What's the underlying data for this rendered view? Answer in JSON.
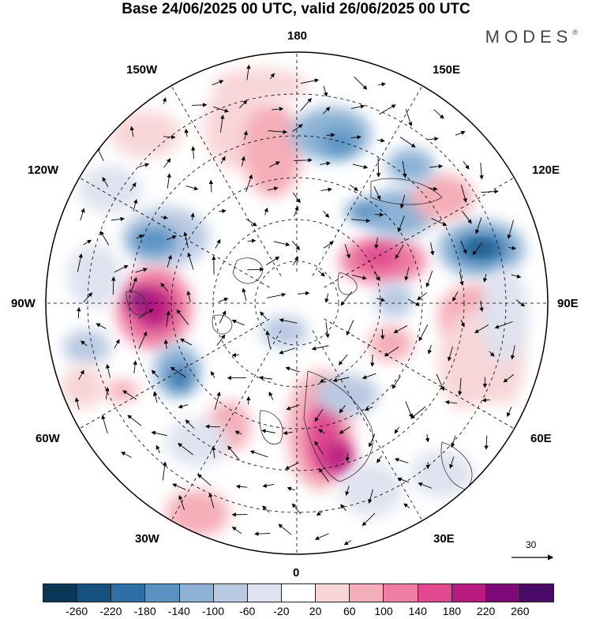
{
  "title": "Base 24/06/2025 00 UTC, valid 26/06/2025 00 UTC",
  "brand": "MODES",
  "brand_mark": "®",
  "longitude_labels": {
    "top": "180",
    "bottom": "0",
    "left": "90W",
    "right": "90E",
    "upper_left": "150W",
    "upper_right": "150E",
    "mid_left_up": "120W",
    "mid_right_up": "120E",
    "mid_left_down": "60W",
    "mid_right_down": "60E",
    "lower_left": "30W",
    "lower_right": "30E"
  },
  "reference_vector": {
    "label": "30"
  },
  "colorbar": {
    "ticks": [
      "-260",
      "-220",
      "-180",
      "-140",
      "-100",
      "-60",
      "-20",
      "20",
      "60",
      "100",
      "140",
      "180",
      "220",
      "260"
    ],
    "colors": [
      "#0b3656",
      "#15507e",
      "#2d6fa6",
      "#5a93c2",
      "#8db2d5",
      "#b9c9e2",
      "#dfe2ef",
      "#ffffff",
      "#f8d6d8",
      "#f4aeb8",
      "#ee7fa2",
      "#e0498f",
      "#b81a7f",
      "#7e0a79",
      "#4a0a6a"
    ]
  },
  "map_features": {
    "projection": "polar stereographic, north pole",
    "grid": "dashed latitude circles and meridians every 30 degrees",
    "vectors": "black wind arrows",
    "shading": "anomaly field, blue negative, pink positive"
  }
}
